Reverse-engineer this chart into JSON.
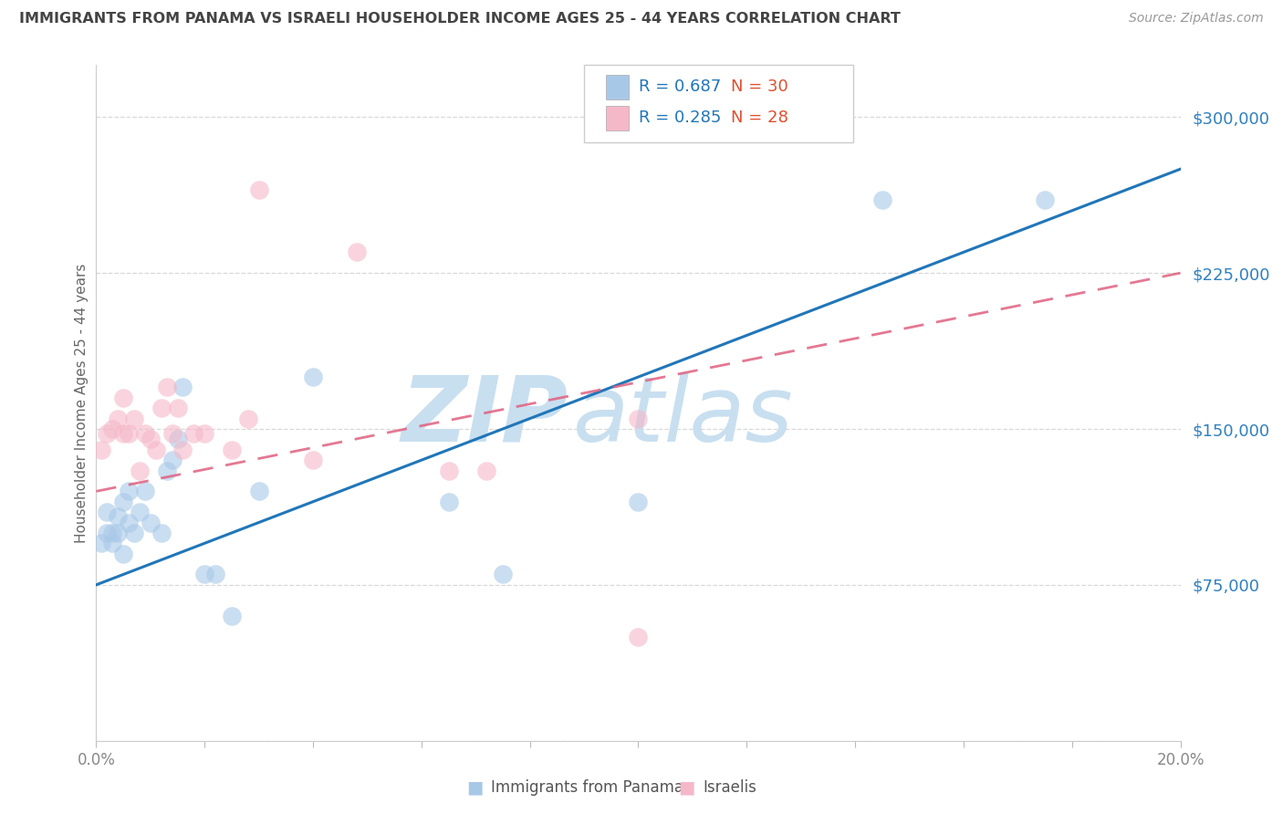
{
  "title": "IMMIGRANTS FROM PANAMA VS ISRAELI HOUSEHOLDER INCOME AGES 25 - 44 YEARS CORRELATION CHART",
  "source_text": "Source: ZipAtlas.com",
  "ylabel": "Householder Income Ages 25 - 44 years",
  "watermark_part1": "ZIP",
  "watermark_part2": "atlas",
  "xlim": [
    0.0,
    0.2
  ],
  "ylim": [
    0,
    325000
  ],
  "yticks": [
    0,
    75000,
    150000,
    225000,
    300000
  ],
  "legend_blue_r": "R = 0.687",
  "legend_blue_n": "N = 30",
  "legend_pink_r": "R = 0.285",
  "legend_pink_n": "N = 28",
  "legend_label_blue": "Immigrants from Panama",
  "legend_label_pink": "Israelis",
  "blue_scatter_color": "#a8c8e8",
  "pink_scatter_color": "#f5b8c8",
  "blue_line_color": "#2176b8",
  "pink_line_color": "#e06080",
  "legend_r_color": "#2176b8",
  "legend_n_color": "#e05030",
  "title_color": "#444444",
  "axis_label_color": "#666666",
  "ytick_color": "#3080c0",
  "xtick_color": "#888888",
  "grid_color": "#d8d8d8",
  "background_color": "#ffffff",
  "blue_scatter_x": [
    0.001,
    0.002,
    0.002,
    0.003,
    0.003,
    0.004,
    0.004,
    0.005,
    0.005,
    0.006,
    0.006,
    0.007,
    0.008,
    0.009,
    0.01,
    0.012,
    0.013,
    0.014,
    0.015,
    0.016,
    0.02,
    0.022,
    0.025,
    0.03,
    0.04,
    0.065,
    0.075,
    0.1,
    0.145,
    0.175
  ],
  "blue_scatter_y": [
    95000,
    100000,
    110000,
    100000,
    95000,
    108000,
    100000,
    115000,
    90000,
    105000,
    120000,
    100000,
    110000,
    120000,
    105000,
    100000,
    130000,
    135000,
    145000,
    170000,
    80000,
    80000,
    60000,
    120000,
    175000,
    115000,
    80000,
    115000,
    260000,
    260000
  ],
  "pink_scatter_x": [
    0.001,
    0.002,
    0.003,
    0.004,
    0.005,
    0.005,
    0.006,
    0.007,
    0.008,
    0.009,
    0.01,
    0.011,
    0.012,
    0.013,
    0.014,
    0.015,
    0.016,
    0.018,
    0.02,
    0.025,
    0.028,
    0.03,
    0.04,
    0.048,
    0.065,
    0.072,
    0.1,
    0.1
  ],
  "pink_scatter_y": [
    140000,
    148000,
    150000,
    155000,
    148000,
    165000,
    148000,
    155000,
    130000,
    148000,
    145000,
    140000,
    160000,
    170000,
    148000,
    160000,
    140000,
    148000,
    148000,
    140000,
    155000,
    265000,
    135000,
    235000,
    130000,
    130000,
    50000,
    155000
  ],
  "blue_line_x0": 0.0,
  "blue_line_x1": 0.2,
  "blue_line_y0": 75000,
  "blue_line_y1": 275000,
  "pink_line_x0": 0.0,
  "pink_line_x1": 0.2,
  "pink_line_y0": 120000,
  "pink_line_y1": 225000
}
